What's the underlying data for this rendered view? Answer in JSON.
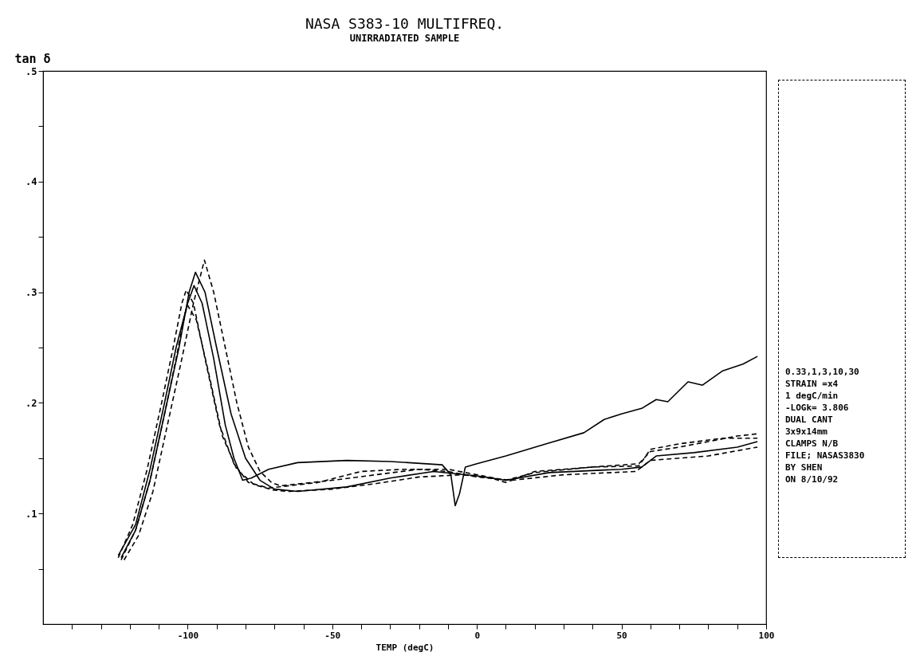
{
  "chart_data": {
    "type": "line",
    "title": "NASA S383-10 MULTIFREQ.",
    "subtitle": "UNIRRADIATED SAMPLE",
    "xlabel": "TEMP (degC)",
    "ylabel": "tan δ",
    "xlim": [
      -150,
      100
    ],
    "xticks": [
      {
        "value": -140,
        "label": null
      },
      {
        "value": -130,
        "label": null
      },
      {
        "value": -120,
        "label": null
      },
      {
        "value": -110,
        "label": null
      },
      -100,
      {
        "value": -90,
        "label": null
      },
      {
        "value": -80,
        "label": null
      },
      {
        "value": -70,
        "label": null
      },
      {
        "value": -60,
        "label": null
      },
      -50,
      {
        "value": -40,
        "label": null
      },
      {
        "value": -30,
        "label": null
      },
      {
        "value": -20,
        "label": null
      },
      {
        "value": -10,
        "label": null
      },
      0,
      {
        "value": 10,
        "label": null
      },
      {
        "value": 20,
        "label": null
      },
      {
        "value": 30,
        "label": null
      },
      {
        "value": 40,
        "label": null
      },
      50,
      {
        "value": 60,
        "label": null
      },
      {
        "value": 70,
        "label": null
      },
      {
        "value": 80,
        "label": null
      },
      {
        "value": 90,
        "label": null
      },
      100
    ],
    "ylim": [
      0,
      0.5
    ],
    "yticks": [
      {
        "value": 0.05,
        "label": null
      },
      {
        "value": 0.1,
        "label": ".1"
      },
      {
        "value": 0.15,
        "label": null
      },
      {
        "value": 0.2,
        "label": ".2"
      },
      {
        "value": 0.25,
        "label": null
      },
      {
        "value": 0.3,
        "label": ".3"
      },
      {
        "value": 0.35,
        "label": null
      },
      {
        "value": 0.4,
        "label": ".4"
      },
      {
        "value": 0.45,
        "label": null
      },
      {
        "value": 0.5,
        "label": ".5"
      }
    ],
    "grid": false,
    "legend": false,
    "marker": "none",
    "series": [
      {
        "color": "#000000",
        "line_style": "solid",
        "x": [
          -124,
          -118,
          -113,
          -108,
          -104,
          -100,
          -97.8,
          -95,
          -91,
          -87,
          -84,
          -81,
          -78,
          -72,
          -62,
          -45,
          -30,
          -12,
          -9,
          -7.5,
          -6,
          -4,
          0,
          10,
          24,
          37,
          44,
          50,
          57,
          62,
          66,
          73,
          78,
          85,
          92,
          97
        ],
        "values": [
          0.062,
          0.09,
          0.14,
          0.2,
          0.25,
          0.29,
          0.306,
          0.29,
          0.24,
          0.18,
          0.15,
          0.13,
          0.132,
          0.14,
          0.146,
          0.148,
          0.147,
          0.144,
          0.135,
          0.107,
          0.118,
          0.142,
          0.145,
          0.152,
          0.163,
          0.173,
          0.185,
          0.19,
          0.195,
          0.203,
          0.201,
          0.219,
          0.216,
          0.229,
          0.235,
          0.242
        ]
      },
      {
        "color": "#000000",
        "line_style": "dashed",
        "x": [
          -124,
          -119,
          -114,
          -109,
          -105,
          -102,
          -100.5,
          -98,
          -94,
          -89,
          -84,
          -79,
          -72,
          -55,
          -40,
          -25,
          -10,
          0,
          10,
          20,
          40,
          56,
          60,
          70,
          80,
          90,
          97
        ],
        "values": [
          0.06,
          0.09,
          0.14,
          0.2,
          0.25,
          0.29,
          0.302,
          0.29,
          0.24,
          0.18,
          0.145,
          0.128,
          0.123,
          0.128,
          0.138,
          0.14,
          0.14,
          0.135,
          0.13,
          0.137,
          0.142,
          0.145,
          0.156,
          0.16,
          0.165,
          0.17,
          0.172
        ]
      },
      {
        "color": "#000000",
        "line_style": "dashed",
        "x": [
          -123,
          -118,
          -113,
          -108,
          -104,
          -101,
          -100,
          -97,
          -93,
          -88,
          -83,
          -77,
          -70,
          -65,
          -50,
          -35,
          -20,
          -5,
          5,
          10,
          20,
          40,
          56,
          60,
          70,
          85,
          97
        ],
        "values": [
          0.058,
          0.085,
          0.13,
          0.19,
          0.24,
          0.28,
          0.288,
          0.275,
          0.23,
          0.17,
          0.14,
          0.126,
          0.121,
          0.12,
          0.122,
          0.127,
          0.133,
          0.135,
          0.132,
          0.128,
          0.138,
          0.142,
          0.143,
          0.158,
          0.163,
          0.168,
          0.168
        ]
      },
      {
        "color": "#000000",
        "line_style": "solid",
        "x": [
          -123,
          -118,
          -113,
          -108,
          -103,
          -99.5,
          -97.3,
          -94,
          -90,
          -85,
          -80,
          -75,
          -70,
          -62,
          -45,
          -30,
          -15,
          0,
          10,
          25,
          50,
          57,
          62,
          75,
          90,
          97
        ],
        "values": [
          0.06,
          0.085,
          0.13,
          0.19,
          0.25,
          0.3,
          0.318,
          0.3,
          0.25,
          0.19,
          0.15,
          0.13,
          0.122,
          0.12,
          0.124,
          0.132,
          0.138,
          0.134,
          0.13,
          0.137,
          0.14,
          0.142,
          0.152,
          0.155,
          0.16,
          0.165
        ]
      },
      {
        "color": "#000000",
        "line_style": "dashed",
        "x": [
          -122,
          -117,
          -112,
          -107,
          -102,
          -98,
          -94.2,
          -91,
          -87,
          -83,
          -79,
          -75,
          -71,
          -68,
          -50,
          -35,
          -20,
          -10,
          0,
          12,
          30,
          55,
          60,
          80,
          97
        ],
        "values": [
          0.058,
          0.08,
          0.12,
          0.18,
          0.24,
          0.29,
          0.329,
          0.3,
          0.25,
          0.2,
          0.16,
          0.138,
          0.128,
          0.125,
          0.13,
          0.135,
          0.14,
          0.138,
          0.133,
          0.13,
          0.135,
          0.138,
          0.148,
          0.152,
          0.16
        ]
      }
    ],
    "annotations": [
      "0.33,1,3,10,30",
      "STRAIN =x4",
      "1 degC/min",
      "-LOGk= 3.806",
      "DUAL CANT",
      "3x9x14mm",
      "CLAMPS N/B",
      "FILE; NASAS3830",
      "BY SHEN",
      "ON 8/10/92"
    ]
  }
}
